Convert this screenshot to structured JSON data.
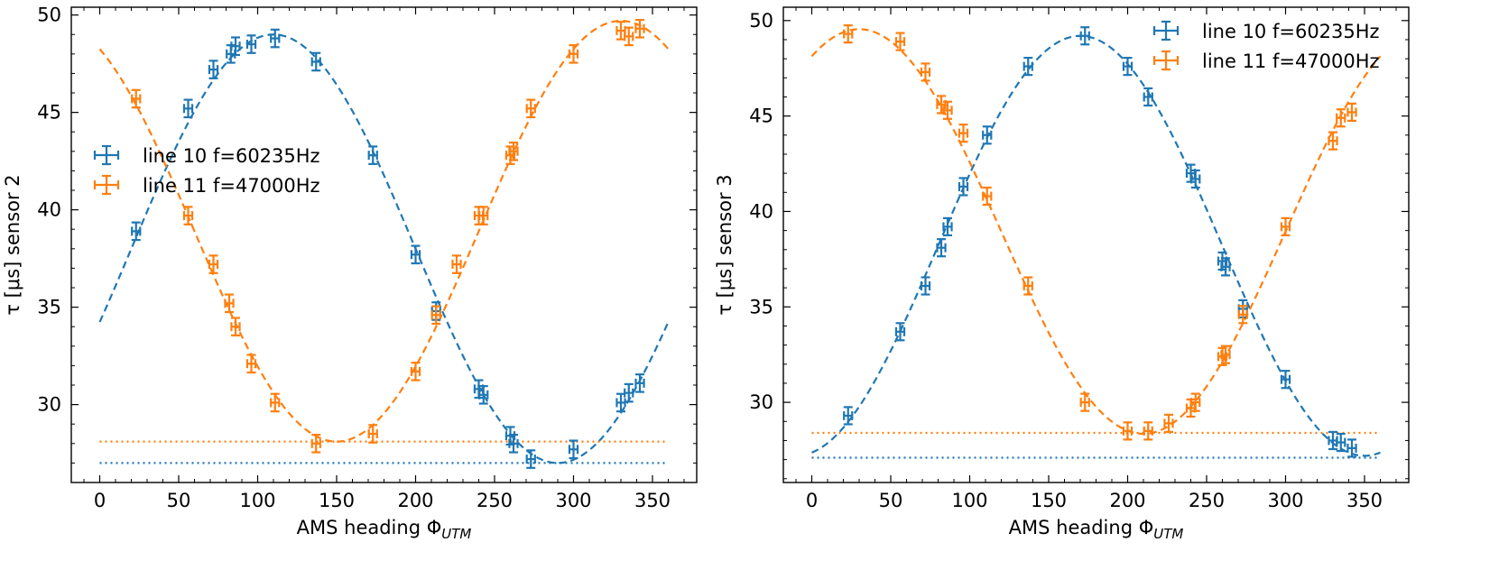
{
  "chart_data": [
    {
      "type": "scatter",
      "ylabel": "τ [μs] sensor 2",
      "xlabel": "AMS heading Φ",
      "xlabel_sub": "UTM",
      "xlim": [
        -18,
        378
      ],
      "ylim": [
        26,
        50.4
      ],
      "xticks": [
        0,
        50,
        100,
        150,
        200,
        250,
        300,
        350
      ],
      "xtick_labels": [
        "0",
        "50",
        "100",
        "150",
        "200",
        "250",
        "300",
        "350"
      ],
      "yticks": [
        30,
        35,
        40,
        45,
        50
      ],
      "ytick_labels": [
        "30",
        "35",
        "40",
        "45",
        "50"
      ],
      "legend_position": "upper-left",
      "series": [
        {
          "name": "line 10 f=60235Hz",
          "color": "#1f77b4",
          "x": [
            23,
            56,
            72,
            83,
            86,
            96,
            111,
            137,
            173,
            200,
            213,
            240,
            243,
            260,
            262,
            273,
            300,
            330,
            335,
            342
          ],
          "y": [
            38.9,
            45.2,
            47.2,
            48.0,
            48.4,
            48.5,
            48.8,
            47.6,
            42.8,
            37.7,
            34.8,
            30.8,
            30.5,
            28.4,
            28.0,
            27.2,
            27.7,
            30.1,
            30.6,
            31.1
          ],
          "fit": {
            "type": "sinusoid",
            "offset": 38.0,
            "amplitude": 11.0,
            "phase_deg": 110
          },
          "baseline": 27.0
        },
        {
          "name": "line 11 f=47000Hz",
          "color": "#ff7f0e",
          "x": [
            23,
            56,
            72,
            82,
            86,
            96,
            111,
            137,
            173,
            200,
            213,
            226,
            240,
            243,
            260,
            262,
            273,
            300,
            330,
            335,
            342
          ],
          "y": [
            45.7,
            39.7,
            37.2,
            35.2,
            34.0,
            32.1,
            30.1,
            28.0,
            28.5,
            31.7,
            34.6,
            37.2,
            39.7,
            39.7,
            42.8,
            43.0,
            45.2,
            48.0,
            49.2,
            48.9,
            49.3
          ],
          "fit": {
            "type": "sinusoid",
            "offset": 38.9,
            "amplitude": 10.8,
            "phase_deg": 330
          },
          "baseline": 28.1
        }
      ]
    },
    {
      "type": "scatter",
      "ylabel": "τ [μs] sensor 3",
      "xlabel": "AMS heading Φ",
      "xlabel_sub": "UTM",
      "xlim": [
        -18,
        378
      ],
      "ylim": [
        25.8,
        50.7
      ],
      "xticks": [
        0,
        50,
        100,
        150,
        200,
        250,
        300,
        350
      ],
      "xtick_labels": [
        "0",
        "50",
        "100",
        "150",
        "200",
        "250",
        "300",
        "350"
      ],
      "yticks": [
        30,
        35,
        40,
        45,
        50
      ],
      "ytick_labels": [
        "30",
        "35",
        "40",
        "45",
        "50"
      ],
      "legend_position": "upper-right",
      "series": [
        {
          "name": "line 10 f=60235Hz",
          "color": "#1f77b4",
          "x": [
            23,
            56,
            72,
            82,
            86,
            96,
            111,
            137,
            173,
            200,
            213,
            240,
            243,
            260,
            262,
            273,
            300,
            330,
            335,
            342
          ],
          "y": [
            29.3,
            33.7,
            36.1,
            38.1,
            39.2,
            41.3,
            44.0,
            47.6,
            49.2,
            47.6,
            46.0,
            42.0,
            41.7,
            37.4,
            37.1,
            34.9,
            31.2,
            28.0,
            27.9,
            27.6
          ],
          "fit": {
            "type": "sinusoid",
            "offset": 38.2,
            "amplitude": 11.0,
            "phase_deg": 170
          },
          "baseline": 27.1
        },
        {
          "name": "line 11 f=47000Hz",
          "color": "#ff7f0e",
          "x": [
            23,
            56,
            72,
            82,
            86,
            96,
            111,
            137,
            173,
            200,
            213,
            226,
            240,
            243,
            260,
            262,
            273,
            300,
            330,
            335,
            342
          ],
          "y": [
            49.3,
            48.9,
            47.3,
            45.6,
            45.3,
            44.1,
            40.8,
            36.1,
            30.0,
            28.5,
            28.5,
            28.9,
            29.7,
            30.0,
            32.4,
            32.5,
            34.6,
            39.2,
            43.7,
            44.9,
            45.2
          ],
          "fit": {
            "type": "sinusoid",
            "offset": 38.95,
            "amplitude": 10.6,
            "phase_deg": 30
          },
          "baseline": 28.4
        }
      ]
    }
  ]
}
